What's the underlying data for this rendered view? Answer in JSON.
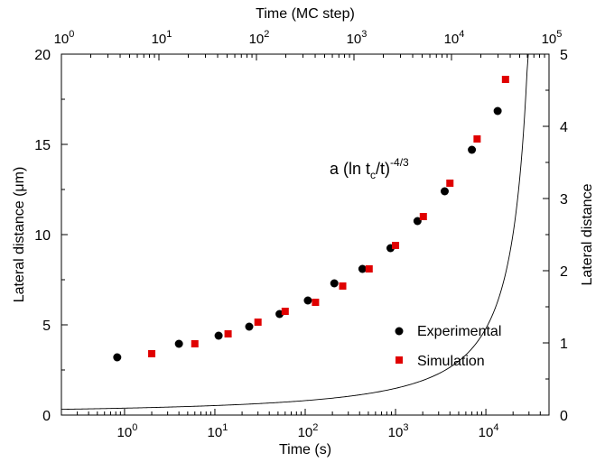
{
  "chart_data": {
    "type": "scatter",
    "title": "",
    "xlabel": "Time (s)",
    "x2label": "Time (MC step)",
    "ylabel": "Lateral distance (μm)",
    "y2label": "Lateral distance",
    "xscale": "log",
    "xlim": [
      0.2,
      50000
    ],
    "ylim": [
      0,
      20
    ],
    "x2lim": [
      1,
      100000
    ],
    "y2lim": [
      0,
      5
    ],
    "x_ticks": [
      {
        "base": "10",
        "exp": "0",
        "value": 1
      },
      {
        "base": "10",
        "exp": "1",
        "value": 10
      },
      {
        "base": "10",
        "exp": "2",
        "value": 100
      },
      {
        "base": "10",
        "exp": "3",
        "value": 1000
      },
      {
        "base": "10",
        "exp": "4",
        "value": 10000
      }
    ],
    "x2_ticks": [
      {
        "base": "10",
        "exp": "0",
        "value": 1
      },
      {
        "base": "10",
        "exp": "1",
        "value": 10
      },
      {
        "base": "10",
        "exp": "2",
        "value": 100
      },
      {
        "base": "10",
        "exp": "3",
        "value": 1000
      },
      {
        "base": "10",
        "exp": "4",
        "value": 10000
      },
      {
        "base": "10",
        "exp": "5",
        "value": 100000
      }
    ],
    "y_ticks": [
      "0",
      "5",
      "10",
      "15",
      "20"
    ],
    "y2_ticks": [
      "0",
      "1",
      "2",
      "3",
      "4",
      "5"
    ],
    "annotation": {
      "main": "a (ln t",
      "sub": "c",
      "rest": "/t)",
      "sup": "-4/3"
    },
    "fit_curve": {
      "a": 9.2,
      "tc": 51000,
      "exponent": -1.3333
    },
    "series": [
      {
        "name": "Experimental",
        "marker": "circle",
        "color": "#000000",
        "x": [
          0.83,
          4.0,
          11.0,
          24.0,
          52.0,
          107.0,
          210.0,
          430.0,
          880.0,
          1750.0,
          3500.0,
          7000.0,
          13500.0
        ],
        "y": [
          3.2,
          3.95,
          4.4,
          4.9,
          5.6,
          6.35,
          7.3,
          8.1,
          9.25,
          10.75,
          12.4,
          14.7,
          16.85
        ]
      },
      {
        "name": "Simulation",
        "marker": "square",
        "color": "#e00000",
        "x": [
          2.0,
          6.0,
          14.0,
          30.0,
          60.0,
          130.0,
          260.0,
          510.0,
          1000.0,
          2030.0,
          4000.0,
          8000.0,
          16500.0
        ],
        "y": [
          3.4,
          3.95,
          4.5,
          5.15,
          5.75,
          6.25,
          7.15,
          8.1,
          9.4,
          11.0,
          12.85,
          15.3,
          18.6
        ]
      }
    ],
    "legend_position": "bottom-right",
    "grid": false
  }
}
